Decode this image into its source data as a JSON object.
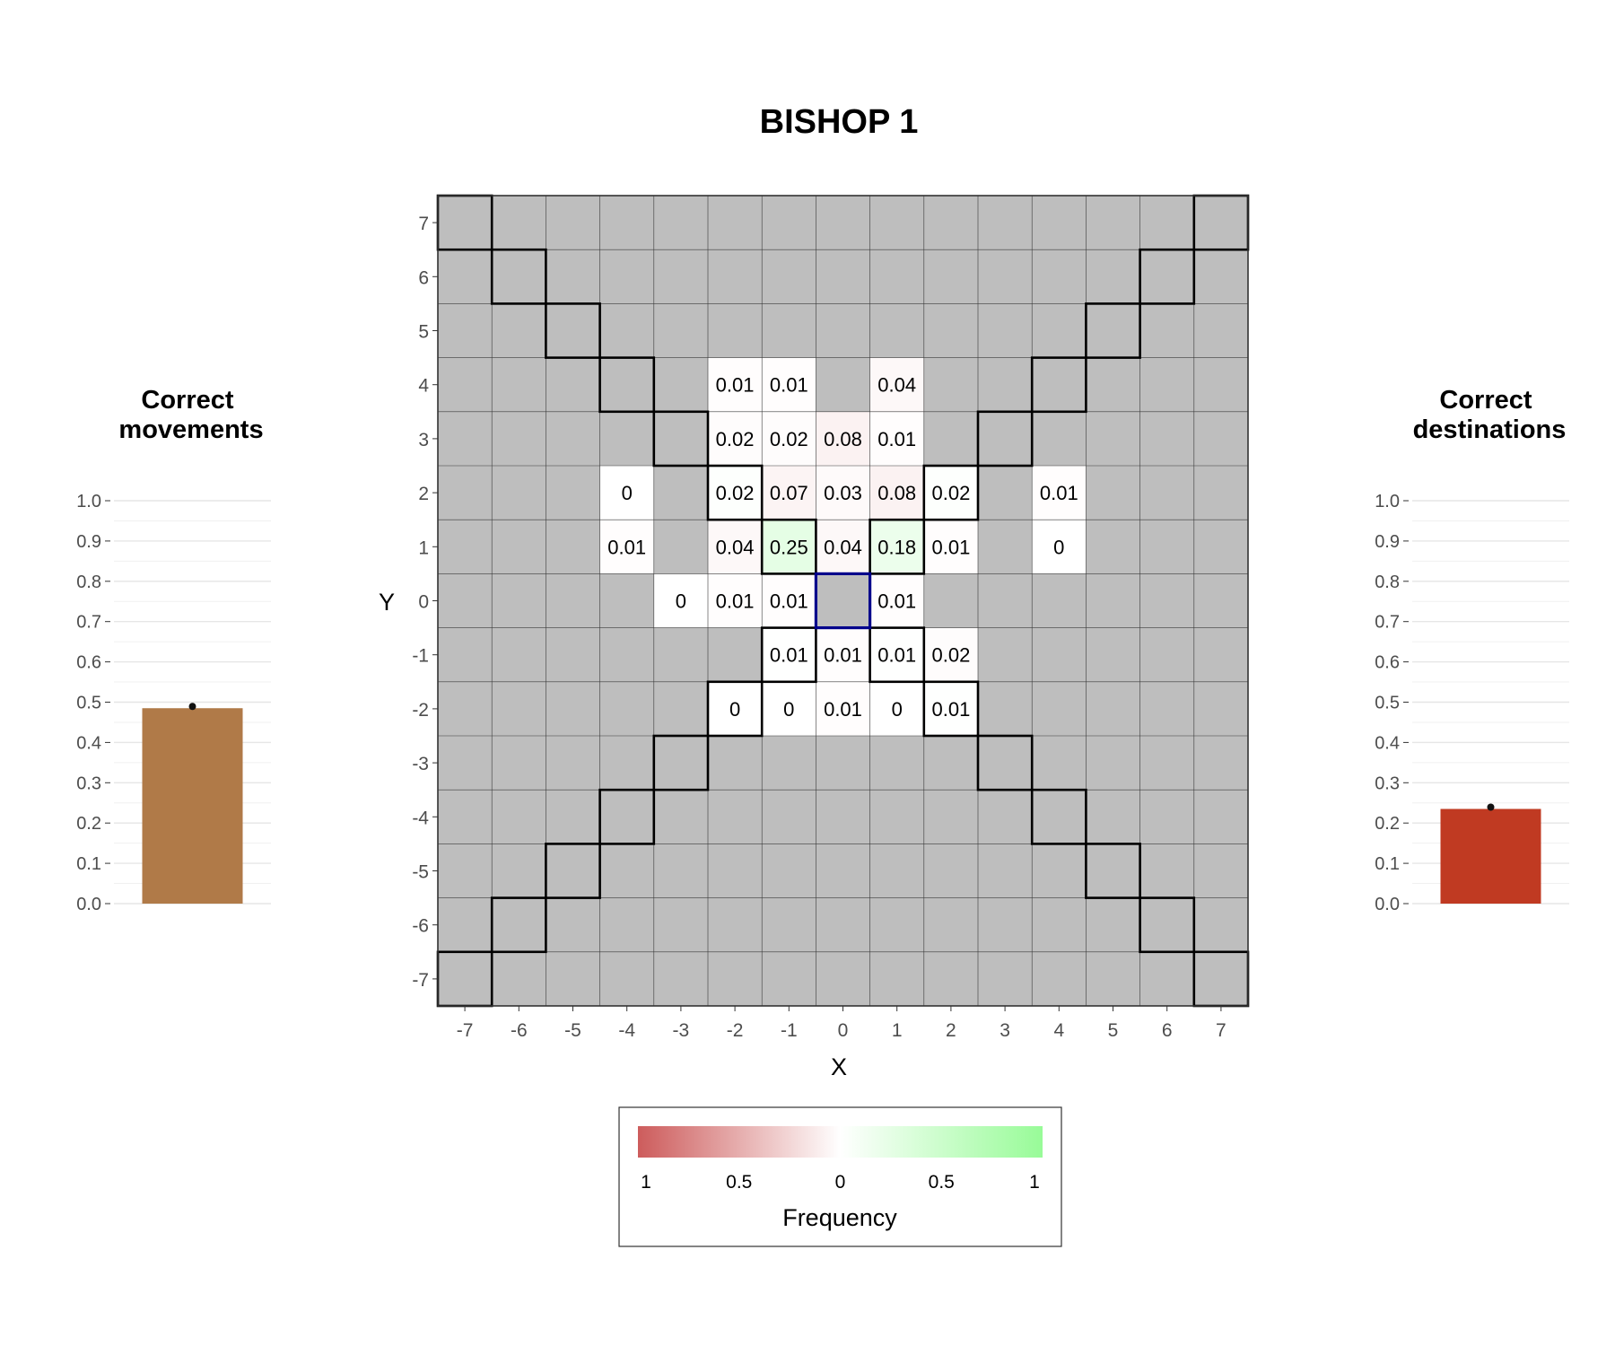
{
  "figure": {
    "title": "BISHOP 1"
  },
  "chart_data": [
    {
      "type": "heatmap",
      "title": "BISHOP 1",
      "xlabel": "X",
      "ylabel": "Y",
      "xlim": [
        -7,
        7
      ],
      "ylim": [
        -7,
        7
      ],
      "x_ticks": [
        "-7",
        "-6",
        "-5",
        "-4",
        "-3",
        "-2",
        "-1",
        "0",
        "1",
        "2",
        "3",
        "4",
        "5",
        "6",
        "7"
      ],
      "y_ticks": [
        "-7",
        "-6",
        "-5",
        "-4",
        "-3",
        "-2",
        "-1",
        "0",
        "1",
        "2",
        "3",
        "4",
        "5",
        "6",
        "7"
      ],
      "background_color": "#bebebe",
      "origin": [
        0,
        0
      ],
      "origin_outline_color": "#00008b",
      "color_scale": {
        "negative": "#cd5c5c",
        "zero": "#ffffff",
        "positive": "#98fb98"
      },
      "cells": [
        {
          "x": -2,
          "y": 4,
          "label": "0.01",
          "valid": false
        },
        {
          "x": -1,
          "y": 4,
          "label": "0.01",
          "valid": false
        },
        {
          "x": 1,
          "y": 4,
          "label": "0.04",
          "valid": false
        },
        {
          "x": -2,
          "y": 3,
          "label": "0.02",
          "valid": false
        },
        {
          "x": -1,
          "y": 3,
          "label": "0.02",
          "valid": false
        },
        {
          "x": 0,
          "y": 3,
          "label": "0.08",
          "valid": false
        },
        {
          "x": 1,
          "y": 3,
          "label": "0.01",
          "valid": false
        },
        {
          "x": -4,
          "y": 2,
          "label": "0",
          "valid": false
        },
        {
          "x": -2,
          "y": 2,
          "label": "0.02",
          "valid": true
        },
        {
          "x": -1,
          "y": 2,
          "label": "0.07",
          "valid": false
        },
        {
          "x": 0,
          "y": 2,
          "label": "0.03",
          "valid": false
        },
        {
          "x": 1,
          "y": 2,
          "label": "0.08",
          "valid": false
        },
        {
          "x": 2,
          "y": 2,
          "label": "0.02",
          "valid": true
        },
        {
          "x": 4,
          "y": 2,
          "label": "0.01",
          "valid": false
        },
        {
          "x": -4,
          "y": 1,
          "label": "0.01",
          "valid": false
        },
        {
          "x": -2,
          "y": 1,
          "label": "0.04",
          "valid": false
        },
        {
          "x": -1,
          "y": 1,
          "label": "0.25",
          "valid": true
        },
        {
          "x": 0,
          "y": 1,
          "label": "0.04",
          "valid": false
        },
        {
          "x": 1,
          "y": 1,
          "label": "0.18",
          "valid": true
        },
        {
          "x": 2,
          "y": 1,
          "label": "0.01",
          "valid": false
        },
        {
          "x": 4,
          "y": 1,
          "label": "0",
          "valid": false
        },
        {
          "x": -3,
          "y": 0,
          "label": "0",
          "valid": false
        },
        {
          "x": -2,
          "y": 0,
          "label": "0.01",
          "valid": false
        },
        {
          "x": -1,
          "y": 0,
          "label": "0.01",
          "valid": false
        },
        {
          "x": 1,
          "y": 0,
          "label": "0.01",
          "valid": false
        },
        {
          "x": -1,
          "y": -1,
          "label": "0.01",
          "valid": true
        },
        {
          "x": 0,
          "y": -1,
          "label": "0.01",
          "valid": false
        },
        {
          "x": 1,
          "y": -1,
          "label": "0.01",
          "valid": true
        },
        {
          "x": 2,
          "y": -1,
          "label": "0.02",
          "valid": false
        },
        {
          "x": -2,
          "y": -2,
          "label": "0",
          "valid": true
        },
        {
          "x": -1,
          "y": -2,
          "label": "0",
          "valid": false
        },
        {
          "x": 0,
          "y": -2,
          "label": "0.01",
          "valid": false
        },
        {
          "x": 1,
          "y": -2,
          "label": "0",
          "valid": false
        },
        {
          "x": 2,
          "y": -2,
          "label": "0.01",
          "valid": true
        }
      ],
      "legend": {
        "title": "Frequency",
        "position": "bottom",
        "tick_labels": [
          "1",
          "0.5",
          "0",
          "0.5",
          "1"
        ]
      }
    },
    {
      "type": "bar",
      "title": "Correct\nmovements",
      "categories": [
        ""
      ],
      "values": [
        0.485
      ],
      "ylim": [
        0,
        1
      ],
      "y_ticks": [
        "0.0",
        "0.1",
        "0.2",
        "0.3",
        "0.4",
        "0.5",
        "0.6",
        "0.7",
        "0.8",
        "0.9",
        "1.0"
      ],
      "color": "#b07a48"
    },
    {
      "type": "bar",
      "title": "Correct\ndestinations",
      "categories": [
        ""
      ],
      "values": [
        0.235
      ],
      "ylim": [
        0,
        1
      ],
      "y_ticks": [
        "0.0",
        "0.1",
        "0.2",
        "0.3",
        "0.4",
        "0.5",
        "0.6",
        "0.7",
        "0.8",
        "0.9",
        "1.0"
      ],
      "color": "#c03a22"
    }
  ]
}
